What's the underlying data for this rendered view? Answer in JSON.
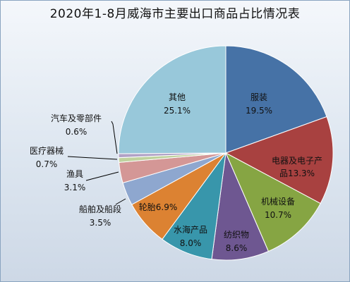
{
  "title": "2020年1-8月威海市主要出口商品占比情况表",
  "chart_data": {
    "type": "pie",
    "title": "2020年1-8月威海市主要出口商品占比情况表",
    "slices": [
      {
        "name": "服装",
        "value": 19.5,
        "label": "19.5%",
        "color": "#4672a6"
      },
      {
        "name": "电器及电子产",
        "name2": "品",
        "value": 13.3,
        "label": "13.3%",
        "color": "#a84140"
      },
      {
        "name": "机械设备",
        "value": 10.7,
        "label": "10.7%",
        "color": "#86a543"
      },
      {
        "name": "纺织物",
        "value": 8.6,
        "label": "8.6%",
        "color": "#6e5791"
      },
      {
        "name": "水海产品",
        "value": 8.0,
        "label": "8.0%",
        "color": "#3896ab"
      },
      {
        "name": "轮胎",
        "value": 6.9,
        "label": "6.9%",
        "color": "#dc8232"
      },
      {
        "name": "船舶及船段",
        "value": 3.5,
        "label": "3.5%",
        "color": "#8ea7cf"
      },
      {
        "name": "渔具",
        "value": 3.1,
        "label": "3.1%",
        "color": "#d49796"
      },
      {
        "name": "医疗器械",
        "value": 0.7,
        "label": "0.7%",
        "color": "#bfd29e"
      },
      {
        "name": "汽车及零部件",
        "value": 0.6,
        "label": "0.6%",
        "color": "#b1a2c6"
      },
      {
        "name": "其他",
        "value": 25.1,
        "label": "25.1%",
        "color": "#98c8da"
      }
    ]
  }
}
